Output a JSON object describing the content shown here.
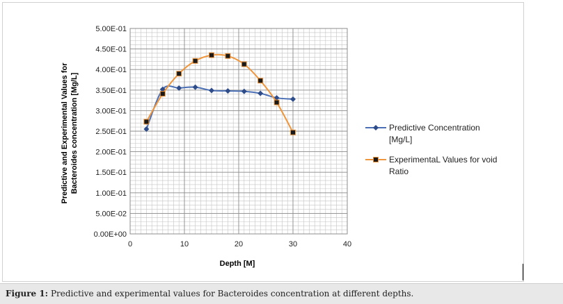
{
  "caption": {
    "label": "Figure 1:",
    "text": "Predictive and experimental values for Bacteroides concentration at different depths."
  },
  "chart_data": {
    "type": "line",
    "xlabel": "Depth [M]",
    "ylabel_line1": "Predictive and Experimental Values for",
    "ylabel_line2": "Bacteroides concentration [Mg/L]",
    "xlim": [
      0,
      40
    ],
    "ylim": [
      0,
      0.5
    ],
    "x_ticks": [
      0,
      10,
      20,
      30,
      40
    ],
    "x_tick_labels": [
      "0",
      "10",
      "20",
      "30",
      "40"
    ],
    "y_ticks": [
      0,
      0.05,
      0.1,
      0.15,
      0.2,
      0.25,
      0.3,
      0.35,
      0.4,
      0.45,
      0.5
    ],
    "y_tick_labels": [
      "0.00E+00",
      "5.00E-02",
      "1.00E-01",
      "1.50E-01",
      "2.00E-01",
      "2.50E-01",
      "3.00E-01",
      "3.50E-01",
      "4.00E-01",
      "4.50E-01",
      "5.00E-01"
    ],
    "grid": true,
    "legend_position": "right",
    "series": [
      {
        "name_line1": "Predictive Concentration",
        "name_line2": "[Mg/L]",
        "color": "#4a6fb5",
        "marker": "diamond",
        "x": [
          3,
          6,
          9,
          12,
          15,
          18,
          21,
          24,
          27,
          30
        ],
        "y": [
          0.255,
          0.352,
          0.355,
          0.357,
          0.349,
          0.348,
          0.347,
          0.342,
          0.331,
          0.328
        ]
      },
      {
        "name_line1": "ExperimentaL Values for void",
        "name_line2": "Ratio",
        "color": "#f0953a",
        "marker": "square",
        "x": [
          3,
          6,
          9,
          12,
          15,
          18,
          21,
          24,
          27,
          30
        ],
        "y": [
          0.273,
          0.341,
          0.39,
          0.421,
          0.435,
          0.433,
          0.413,
          0.373,
          0.32,
          0.247
        ]
      }
    ]
  }
}
